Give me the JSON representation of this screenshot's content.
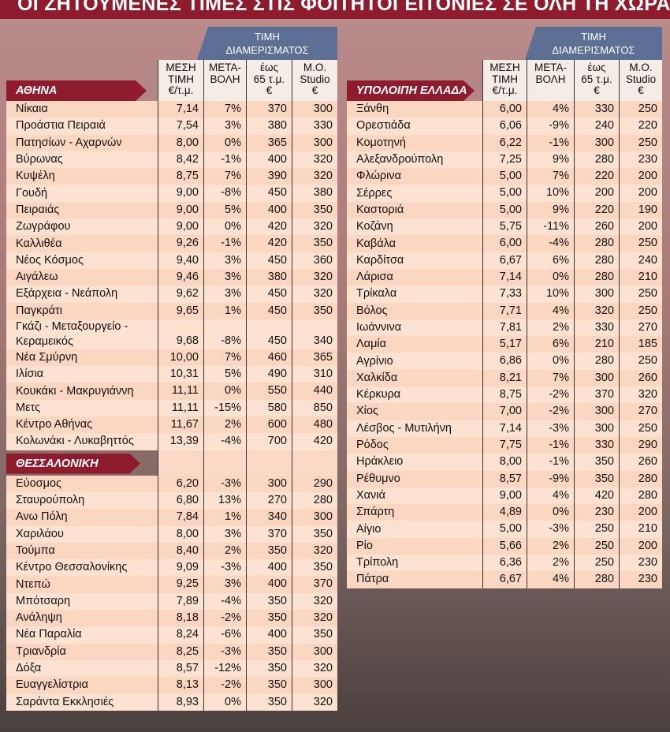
{
  "title": "ΟΙ ΖΗΤΟΥΜΕΝΕΣ ΤΙΜΕΣ ΣΤΙΣ ΦΟΙΤΗΤΟΓΕΙΤΟΝΙΕΣ ΣΕ ΟΛΗ ΤΗ ΧΩΡΑ",
  "tables": [
    {
      "group_header": [
        "ΤΙΜΗ",
        "ΔΙΑΜΕΡΙΣΜΑΤΟΣ"
      ],
      "columns": [
        [
          "ΜΕΣΗ",
          "ΤΙΜΗ",
          "€/τ.μ."
        ],
        [
          "ΜΕΤΑ-",
          "ΒΟΛΗ"
        ],
        [
          "έως",
          "65 τ.μ.",
          "€"
        ],
        [
          "Μ.Ο.",
          "Studio",
          "€"
        ]
      ],
      "sections": [
        {
          "name": "ΑΘΗΝΑ",
          "rows": [
            [
              "Νίκαια",
              "7,14",
              "7%",
              "370",
              "300"
            ],
            [
              "Προάστια Πειραιά",
              "7,54",
              "3%",
              "380",
              "330"
            ],
            [
              "Πατησίων - Αχαρνών",
              "8,00",
              "0%",
              "365",
              "300"
            ],
            [
              "Βύρωνας",
              "8,42",
              "-1%",
              "400",
              "320"
            ],
            [
              "Κυψέλη",
              "8,75",
              "7%",
              "390",
              "320"
            ],
            [
              "Γουδή",
              "9,00",
              "-8%",
              "450",
              "380"
            ],
            [
              "Πειραιάς",
              "9,00",
              "5%",
              "400",
              "350"
            ],
            [
              "Ζωγράφου",
              "9,00",
              "0%",
              "420",
              "320"
            ],
            [
              "Καλλιθέα",
              "9,26",
              "-1%",
              "420",
              "350"
            ],
            [
              "Νέος Κόσμος",
              "9,40",
              "3%",
              "450",
              "360"
            ],
            [
              "Αιγάλεω",
              "9,46",
              "3%",
              "380",
              "320"
            ],
            [
              "Εξάρχεια - Νεάπολη",
              "9,62",
              "3%",
              "450",
              "320"
            ],
            [
              "Παγκράτι",
              "9,65",
              "1%",
              "450",
              "350"
            ],
            [
              "Γκάζι - Μεταξουργείο - Κεραμεικός",
              "9,68",
              "-8%",
              "450",
              "340"
            ],
            [
              "Νέα Σμύρνη",
              "10,00",
              "7%",
              "460",
              "365"
            ],
            [
              "Ιλίσια",
              "10,31",
              "5%",
              "490",
              "310"
            ],
            [
              "Κουκάκι - Μακρυγιάννη",
              "11,11",
              "0%",
              "550",
              "440"
            ],
            [
              "Μετς",
              "11,11",
              "-15%",
              "580",
              "850"
            ],
            [
              "Κέντρο Αθήνας",
              "11,67",
              "2%",
              "600",
              "480"
            ],
            [
              "Κολωνάκι - Λυκαβηττός",
              "13,39",
              "-4%",
              "700",
              "420"
            ]
          ]
        },
        {
          "name": "ΘΕΣΣΑΛΟΝΙΚΗ",
          "rows": [
            [
              "Εύοσμος",
              "6,20",
              "-3%",
              "300",
              "290"
            ],
            [
              "Σταυρούπολη",
              "6,80",
              "13%",
              "270",
              "280"
            ],
            [
              "Ανω Πόλη",
              "7,84",
              "1%",
              "340",
              "300"
            ],
            [
              "Χαριλάου",
              "8,00",
              "3%",
              "370",
              "350"
            ],
            [
              "Τούμπα",
              "8,40",
              "2%",
              "350",
              "320"
            ],
            [
              "Κέντρο Θεσσαλονίκης",
              "9,09",
              "-3%",
              "400",
              "350"
            ],
            [
              "Ντεπώ",
              "9,25",
              "3%",
              "400",
              "370"
            ],
            [
              "Μπότσαρη",
              "7,89",
              "-4%",
              "350",
              "320"
            ],
            [
              "Ανάληψη",
              "8,18",
              "-2%",
              "350",
              "320"
            ],
            [
              "Νέα Παραλία",
              "8,24",
              "-6%",
              "400",
              "350"
            ],
            [
              "Τριανδρία",
              "8,25",
              "-3%",
              "350",
              "300"
            ],
            [
              "Δόξα",
              "8,57",
              "-12%",
              "350",
              "320"
            ],
            [
              "Ευαγγελίστρια",
              "8,13",
              "-2%",
              "350",
              "300"
            ],
            [
              "Σαράντα Εκκλησιές",
              "8,93",
              "0%",
              "350",
              "320"
            ]
          ]
        }
      ]
    },
    {
      "group_header": [
        "ΤΙΜΗ",
        "ΔΙΑΜΕΡΙΣΜΑΤΟΣ"
      ],
      "columns": [
        [
          "ΜΕΣΗ",
          "ΤΙΜΗ",
          "€/τ.μ."
        ],
        [
          "ΜΕΤΑ-",
          "ΒΟΛΗ"
        ],
        [
          "έως",
          "65 τ.μ.",
          "€"
        ],
        [
          "Μ.Ο.",
          "Studio",
          "€"
        ]
      ],
      "sections": [
        {
          "name": "ΥΠΟΛΟΙΠΗ ΕΛΛΑΔΑ",
          "rows": [
            [
              "Ξάνθη",
              "6,00",
              "4%",
              "330",
              "250"
            ],
            [
              "Ορεστιάδα",
              "6,06",
              "-9%",
              "240",
              "220"
            ],
            [
              "Κομοτηνή",
              "6,22",
              "-1%",
              "300",
              "250"
            ],
            [
              "Αλεξανδρούπολη",
              "7,25",
              "9%",
              "280",
              "230"
            ],
            [
              "Φλώρινα",
              "5,00",
              "7%",
              "220",
              "200"
            ],
            [
              "Σέρρες",
              "5,00",
              "10%",
              "200",
              "200"
            ],
            [
              "Καστοριά",
              "5,00",
              "9%",
              "220",
              "190"
            ],
            [
              "Κοζάνη",
              "5,75",
              "-11%",
              "260",
              "200"
            ],
            [
              "Καβάλα",
              "6,00",
              "-4%",
              "280",
              "250"
            ],
            [
              "Καρδίτσα",
              "6,67",
              "6%",
              "280",
              "240"
            ],
            [
              "Λάρισα",
              "7,14",
              "0%",
              "280",
              "210"
            ],
            [
              "Τρίκαλα",
              "7,33",
              "10%",
              "300",
              "250"
            ],
            [
              "Βόλος",
              "7,71",
              "4%",
              "320",
              "250"
            ],
            [
              "Ιωάννινα",
              "7,81",
              "2%",
              "330",
              "270"
            ],
            [
              "Λαμία",
              "5,17",
              "6%",
              "210",
              "185"
            ],
            [
              "Αγρίνιο",
              "6,86",
              "0%",
              "280",
              "250"
            ],
            [
              "Χαλκίδα",
              "8,21",
              "7%",
              "300",
              "260"
            ],
            [
              "Κέρκυρα",
              "8,75",
              "-2%",
              "370",
              "320"
            ],
            [
              "Χίος",
              "7,00",
              "-2%",
              "300",
              "270"
            ],
            [
              "Λέσβος - Μυτιλήνη",
              "7,14",
              "-3%",
              "300",
              "250"
            ],
            [
              "Ρόδος",
              "7,75",
              "-1%",
              "330",
              "290"
            ],
            [
              "Ηράκλειο",
              "8,00",
              "-1%",
              "350",
              "260"
            ],
            [
              "Ρέθυμνο",
              "8,57",
              "-9%",
              "350",
              "280"
            ],
            [
              "Χανιά",
              "9,00",
              "4%",
              "420",
              "280"
            ],
            [
              "Σπάρτη",
              "4,89",
              "0%",
              "230",
              "200"
            ],
            [
              "Αίγιο",
              "5,00",
              "-3%",
              "250",
              "210"
            ],
            [
              "Ρίο",
              "5,66",
              "2%",
              "250",
              "200"
            ],
            [
              "Τρίπολη",
              "6,36",
              "2%",
              "250",
              "230"
            ],
            [
              "Πάτρα",
              "6,67",
              "4%",
              "280",
              "230"
            ]
          ]
        }
      ]
    }
  ]
}
